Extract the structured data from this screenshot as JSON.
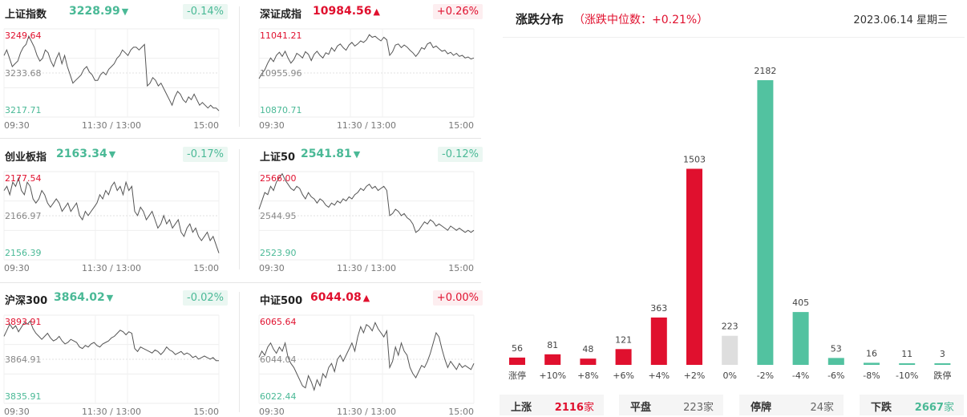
{
  "panels": [
    {
      "name": "上证指数",
      "value": "3228.99",
      "arrow": "▼",
      "dir": "dn",
      "pct": "-0.14%",
      "yTop": "3249.64",
      "yMid": "3233.68",
      "yBot": "3217.71",
      "x": [
        "09:30",
        "11:30 / 13:00",
        "15:00"
      ],
      "series": [
        3240,
        3242,
        3239,
        3236,
        3237,
        3238,
        3241,
        3243,
        3244,
        3247,
        3245,
        3243,
        3240,
        3238,
        3239,
        3242,
        3241,
        3238,
        3236,
        3239,
        3241,
        3237,
        3240,
        3236,
        3233,
        3230,
        3231,
        3232,
        3233,
        3235,
        3236,
        3234,
        3233,
        3231,
        3231,
        3233,
        3234,
        3233,
        3235,
        3236,
        3237,
        3239,
        3240,
        3242,
        3241,
        3240,
        3242,
        3243,
        3243,
        3242,
        3243,
        3244,
        3229,
        3230,
        3232,
        3231,
        3229,
        3230,
        3228,
        3226,
        3224,
        3222,
        3225,
        3227,
        3226,
        3224,
        3223,
        3225,
        3224,
        3226,
        3224,
        3222,
        3223,
        3222,
        3221,
        3222,
        3221,
        3221,
        3220
      ]
    },
    {
      "name": "深证成指",
      "value": "10984.56",
      "arrow": "▲",
      "dir": "up",
      "pct": "+0.26%",
      "yTop": "11041.21",
      "yMid": "10955.96",
      "yBot": "10870.71",
      "x": [
        "09:30",
        "11:30 / 13:00",
        "15:00"
      ],
      "series": [
        10945,
        10955,
        10962,
        10975,
        10985,
        10978,
        10990,
        10996,
        10988,
        10998,
        10985,
        10975,
        10982,
        10994,
        10990,
        10985,
        10997,
        10992,
        10980,
        10992,
        10998,
        10990,
        10985,
        10995,
        10992,
        11005,
        10998,
        11008,
        11012,
        11005,
        11000,
        11010,
        11015,
        11008,
        11012,
        11018,
        11015,
        11020,
        11030,
        11025,
        11027,
        11022,
        11018,
        11025,
        11020,
        10990,
        10997,
        11010,
        11012,
        11005,
        11010,
        11006,
        11000,
        10995,
        10988,
        10995,
        11005,
        11002,
        11012,
        11015,
        11005,
        11008,
        11003,
        10998,
        11000,
        10993,
        10996,
        10990,
        10994,
        10988,
        10990,
        10985,
        10987,
        10983,
        10985
      ]
    },
    {
      "name": "创业板指",
      "value": "2163.34",
      "arrow": "▼",
      "dir": "dn",
      "pct": "-0.17%",
      "yTop": "2177.54",
      "yMid": "2166.97",
      "yBot": "2156.39",
      "x": [
        "09:30",
        "11:30 / 13:00",
        "15:00"
      ],
      "series": [
        2173,
        2174,
        2172,
        2175,
        2174,
        2176,
        2173,
        2172,
        2175,
        2174,
        2171,
        2170,
        2171,
        2173,
        2172,
        2170,
        2169,
        2170,
        2171,
        2170,
        2168,
        2169,
        2170,
        2168,
        2169,
        2170,
        2167,
        2166,
        2168,
        2167,
        2168,
        2169,
        2170,
        2172,
        2171,
        2173,
        2172,
        2174,
        2175,
        2173,
        2174,
        2172,
        2175,
        2173,
        2174,
        2168,
        2167,
        2169,
        2168,
        2166,
        2167,
        2168,
        2166,
        2164,
        2165,
        2167,
        2165,
        2166,
        2164,
        2165,
        2166,
        2163,
        2162,
        2164,
        2165,
        2163,
        2164,
        2162,
        2161,
        2162,
        2163,
        2161,
        2162,
        2160,
        2158
      ]
    },
    {
      "name": "上证50",
      "value": "2541.81",
      "arrow": "▼",
      "dir": "dn",
      "pct": "-0.12%",
      "yTop": "2566.00",
      "yMid": "2544.95",
      "yBot": "2523.90",
      "x": [
        "09:30",
        "11:30 / 13:00",
        "15:00"
      ],
      "series": [
        2548,
        2552,
        2556,
        2555,
        2559,
        2557,
        2561,
        2563,
        2565,
        2562,
        2560,
        2558,
        2557,
        2559,
        2558,
        2555,
        2553,
        2556,
        2554,
        2553,
        2551,
        2553,
        2552,
        2550,
        2549,
        2551,
        2550,
        2552,
        2551,
        2553,
        2552,
        2554,
        2553,
        2555,
        2556,
        2558,
        2557,
        2559,
        2560,
        2558,
        2559,
        2557,
        2558,
        2559,
        2557,
        2545,
        2546,
        2548,
        2547,
        2545,
        2546,
        2544,
        2543,
        2541,
        2537,
        2538,
        2540,
        2542,
        2541,
        2543,
        2542,
        2540,
        2541,
        2540,
        2539,
        2538,
        2540,
        2539,
        2538,
        2539,
        2538,
        2537,
        2538,
        2537,
        2538
      ]
    },
    {
      "name": "沪深300",
      "value": "3864.02",
      "arrow": "▼",
      "dir": "dn",
      "pct": "-0.02%",
      "yTop": "3893.91",
      "yMid": "3864.91",
      "yBot": "3835.91",
      "x": [
        "09:30",
        "11:30 / 13:00",
        "15:00"
      ],
      "series": [
        3880,
        3884,
        3888,
        3885,
        3887,
        3883,
        3886,
        3889,
        3888,
        3890,
        3885,
        3882,
        3880,
        3878,
        3880,
        3882,
        3879,
        3877,
        3878,
        3880,
        3877,
        3875,
        3876,
        3878,
        3877,
        3876,
        3873,
        3872,
        3874,
        3873,
        3875,
        3876,
        3874,
        3873,
        3875,
        3876,
        3877,
        3879,
        3880,
        3882,
        3884,
        3883,
        3881,
        3883,
        3882,
        3872,
        3870,
        3873,
        3872,
        3871,
        3870,
        3869,
        3871,
        3870,
        3868,
        3870,
        3873,
        3871,
        3870,
        3868,
        3869,
        3870,
        3868,
        3869,
        3868,
        3866,
        3867,
        3865,
        3866,
        3867,
        3866,
        3865,
        3866,
        3864,
        3864
      ]
    },
    {
      "name": "中证500",
      "value": "6044.08",
      "arrow": "▲",
      "dir": "up",
      "pct": "+0.00%",
      "yTop": "6065.64",
      "yMid": "6044.04",
      "yBot": "6022.44",
      "x": [
        "09:30",
        "11:30 / 13:00",
        "15:00"
      ],
      "series": [
        6045,
        6048,
        6046,
        6050,
        6052,
        6049,
        6047,
        6050,
        6048,
        6052,
        6045,
        6042,
        6040,
        6037,
        6034,
        6031,
        6030,
        6036,
        6033,
        6029,
        6034,
        6031,
        6037,
        6035,
        6040,
        6042,
        6038,
        6044,
        6046,
        6043,
        6046,
        6049,
        6052,
        6048,
        6055,
        6060,
        6057,
        6061,
        6060,
        6058,
        6062,
        6059,
        6057,
        6055,
        6058,
        6040,
        6043,
        6050,
        6046,
        6052,
        6048,
        6046,
        6040,
        6037,
        6035,
        6038,
        6041,
        6040,
        6043,
        6047,
        6052,
        6057,
        6055,
        6049,
        6044,
        6040,
        6043,
        6041,
        6039,
        6042,
        6040,
        6041,
        6040,
        6039,
        6042
      ]
    }
  ],
  "distribution": {
    "title": "涨跌分布",
    "median": "（涨跌中位数：+0.21%）",
    "date": "2023.06.14 星期三"
  },
  "chart_data": {
    "type": "bar",
    "categories": [
      "涨停",
      "+10%",
      "+8%",
      "+6%",
      "+4%",
      "+2%",
      "0%",
      "-2%",
      "-4%",
      "-6%",
      "-8%",
      "-10%",
      "跌停"
    ],
    "values": [
      56,
      81,
      48,
      121,
      363,
      1503,
      223,
      2182,
      405,
      53,
      16,
      11,
      3
    ],
    "value_labels": [
      "56",
      "81",
      "48",
      "121",
      "363",
      "1503",
      "223",
      "2182",
      "405",
      "53",
      "16",
      "11",
      "3"
    ],
    "colors": [
      "#e0102e",
      "#e0102e",
      "#e0102e",
      "#e0102e",
      "#e0102e",
      "#e0102e",
      "#dedede",
      "#52c2a0",
      "#52c2a0",
      "#52c2a0",
      "#52c2a0",
      "#52c2a0",
      "#52c2a0"
    ]
  },
  "stats": [
    {
      "label": "上涨",
      "value": "2116",
      "unit": "家",
      "color": "#e0102e"
    },
    {
      "label": "平盘",
      "value": "223",
      "unit": "家",
      "color": "#666666"
    },
    {
      "label": "停牌",
      "value": "24",
      "unit": "家",
      "color": "#666666"
    },
    {
      "label": "下跌",
      "value": "2667",
      "unit": "家",
      "color": "#4ab996"
    }
  ],
  "colors": {
    "up": "#e0102e",
    "down": "#4ab996",
    "flat": "#dedede"
  }
}
